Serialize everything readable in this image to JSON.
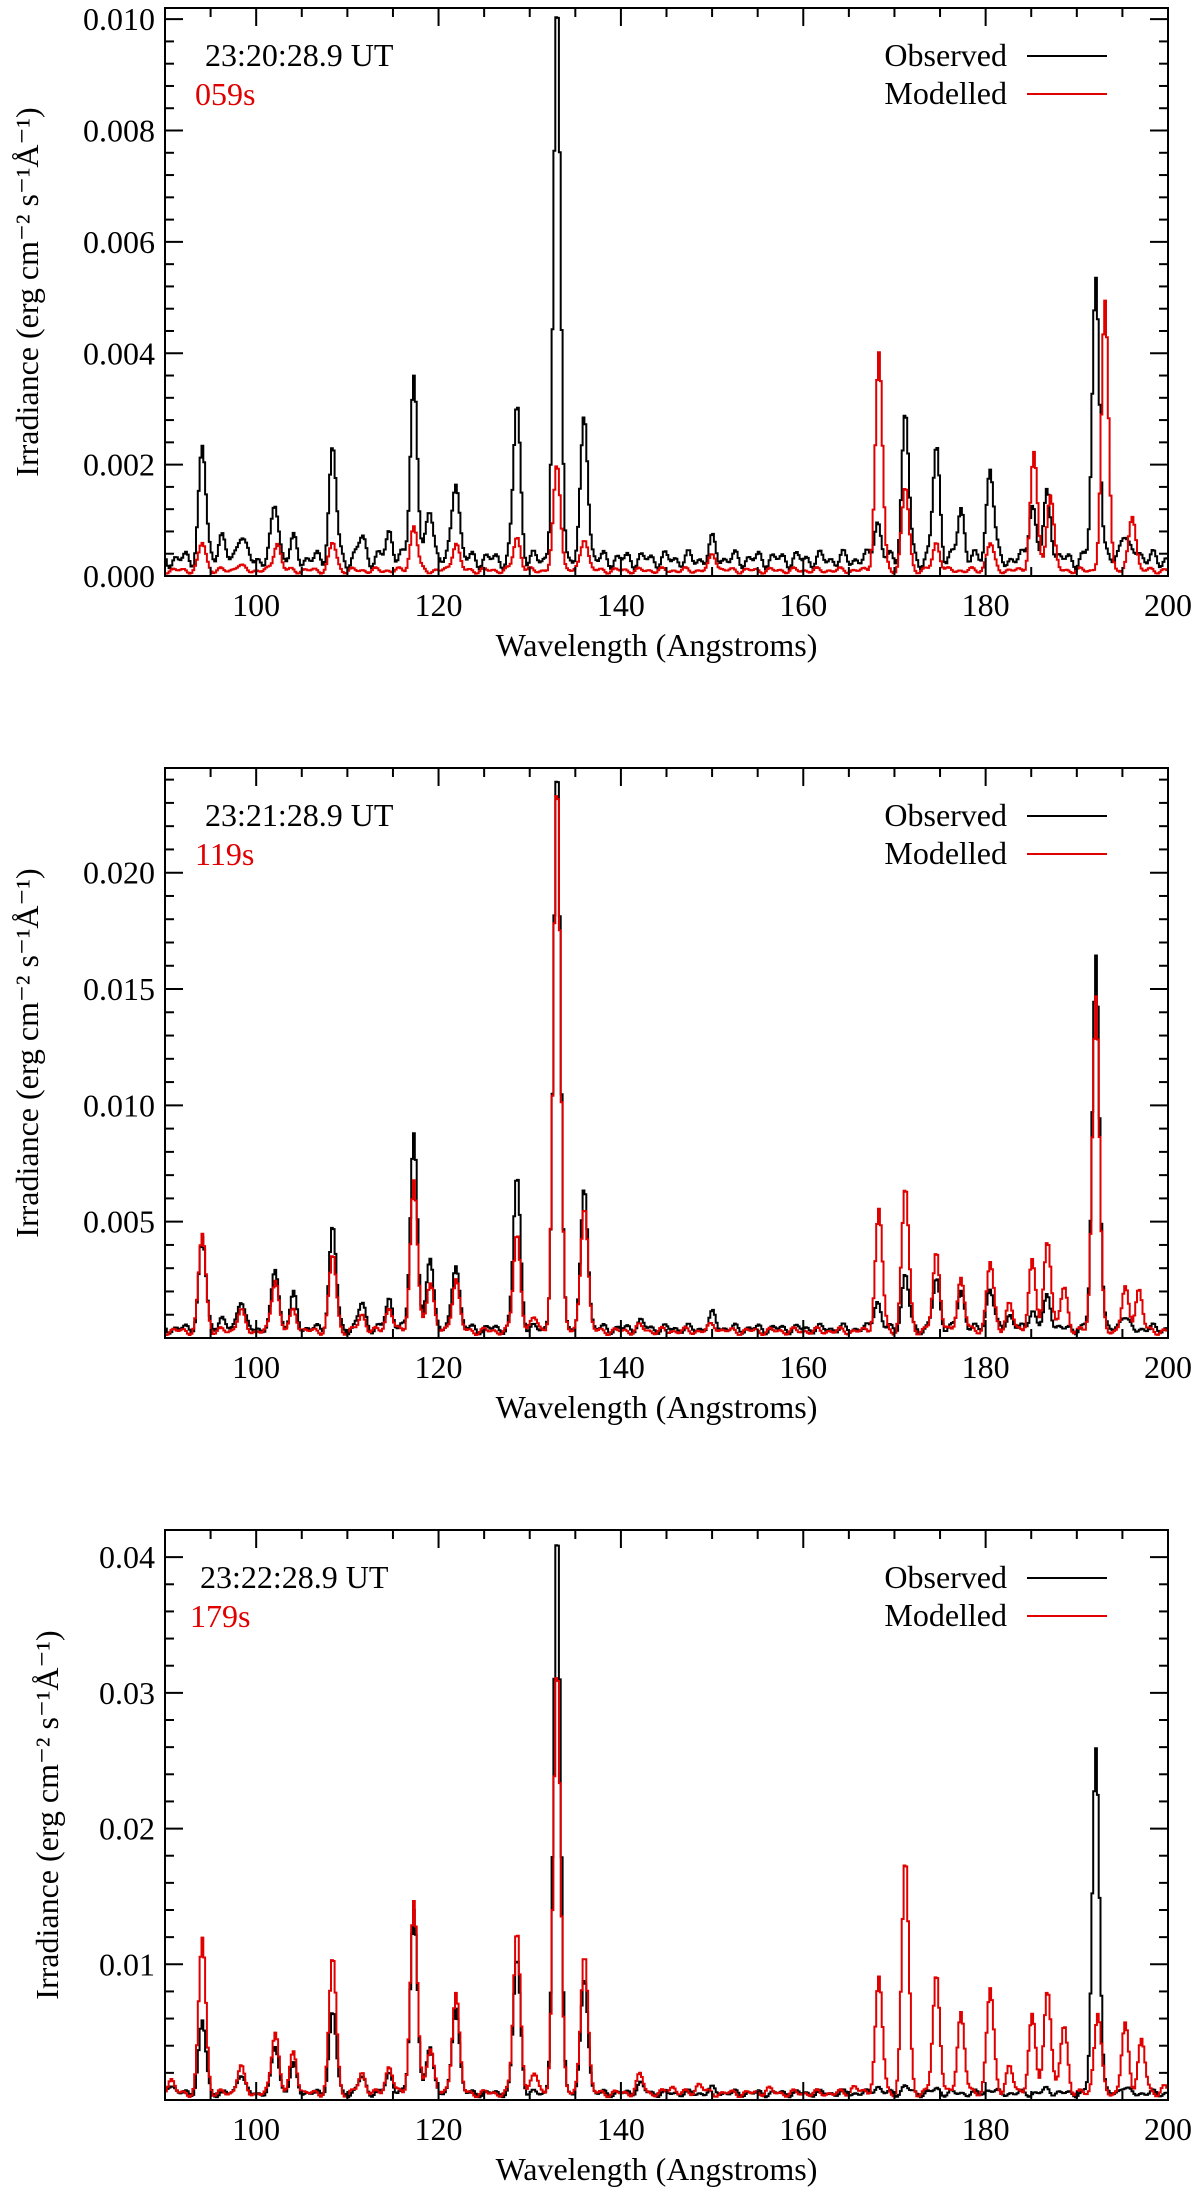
{
  "chart_data": [
    {
      "type": "line",
      "time_label": "23:20:28.9 UT",
      "elapsed_label": "059s",
      "xlabel": "Wavelength (Angstroms)",
      "ylabel": "Irradiance (erg cm⁻² s⁻¹Å⁻¹)",
      "xlim": [
        90,
        200
      ],
      "ylim": [
        0.0,
        0.0102
      ],
      "x_ticks": [
        "100",
        "120",
        "140",
        "160",
        "180",
        "200"
      ],
      "y_ticks": [
        "0.000",
        "0.002",
        "0.004",
        "0.006",
        "0.008",
        "0.010"
      ],
      "y_tick_values": [
        0.0,
        0.002,
        0.004,
        0.006,
        0.008,
        0.01
      ],
      "legend_position": "top-right",
      "series": [
        {
          "name": "Observed",
          "color": "#000000",
          "baseline": 0.0003,
          "peaks": [
            [
              94.0,
              0.0023
            ],
            [
              96.0,
              0.0007
            ],
            [
              98.2,
              0.0008
            ],
            [
              102.0,
              0.0013
            ],
            [
              104.0,
              0.0006
            ],
            [
              108.3,
              0.0023
            ],
            [
              111.5,
              0.0007
            ],
            [
              114.5,
              0.0008
            ],
            [
              117.2,
              0.0036
            ],
            [
              119.0,
              0.0012
            ],
            [
              121.8,
              0.0018
            ],
            [
              128.5,
              0.0031
            ],
            [
              132.9,
              0.0102
            ],
            [
              135.9,
              0.0029
            ],
            [
              142.0,
              0.0003
            ],
            [
              150.0,
              0.0006
            ],
            [
              168.0,
              0.001
            ],
            [
              171.1,
              0.0029
            ],
            [
              174.5,
              0.0023
            ],
            [
              177.2,
              0.0012
            ],
            [
              180.4,
              0.002
            ],
            [
              185.0,
              0.0013
            ],
            [
              186.7,
              0.0015
            ],
            [
              192.0,
              0.0054
            ],
            [
              195.0,
              0.0008
            ],
            [
              196.5,
              0.0005
            ]
          ]
        },
        {
          "name": "Modelled",
          "color": "#e00000",
          "baseline": 0.0001,
          "peaks": [
            [
              94.0,
              0.0006
            ],
            [
              98.0,
              0.0002
            ],
            [
              102.2,
              0.0006
            ],
            [
              108.3,
              0.0006
            ],
            [
              117.2,
              0.0009
            ],
            [
              121.8,
              0.0006
            ],
            [
              128.5,
              0.0007
            ],
            [
              132.9,
              0.002
            ],
            [
              135.9,
              0.0007
            ],
            [
              150.0,
              0.0004
            ],
            [
              168.2,
              0.004
            ],
            [
              171.1,
              0.0016
            ],
            [
              174.5,
              0.0006
            ],
            [
              180.4,
              0.0006
            ],
            [
              185.2,
              0.0022
            ],
            [
              187.0,
              0.0015
            ],
            [
              193.0,
              0.0049
            ],
            [
              196.0,
              0.0011
            ]
          ]
        }
      ]
    },
    {
      "type": "line",
      "time_label": "23:21:28.9 UT",
      "elapsed_label": "119s",
      "xlabel": "Wavelength (Angstroms)",
      "ylabel": "Irradiance (erg cm⁻² s⁻¹Å⁻¹)",
      "xlim": [
        90,
        200
      ],
      "ylim": [
        0.0,
        0.0245
      ],
      "x_ticks": [
        "100",
        "120",
        "140",
        "160",
        "180",
        "200"
      ],
      "y_ticks": [
        "0.005",
        "0.010",
        "0.015",
        "0.020"
      ],
      "y_tick_values": [
        0.005,
        0.01,
        0.015,
        0.02
      ],
      "legend_position": "top-right",
      "series": [
        {
          "name": "Observed",
          "color": "#000000",
          "baseline": 0.0004,
          "peaks": [
            [
              94.0,
              0.0043
            ],
            [
              96.0,
              0.0008
            ],
            [
              98.2,
              0.0017
            ],
            [
              102.0,
              0.003
            ],
            [
              104.0,
              0.0018
            ],
            [
              108.3,
              0.0048
            ],
            [
              111.5,
              0.0015
            ],
            [
              114.5,
              0.0017
            ],
            [
              117.2,
              0.0088
            ],
            [
              119.0,
              0.0035
            ],
            [
              121.8,
              0.0033
            ],
            [
              128.5,
              0.007
            ],
            [
              132.9,
              0.0245
            ],
            [
              135.9,
              0.0065
            ],
            [
              142.0,
              0.0007
            ],
            [
              150.0,
              0.001
            ],
            [
              168.0,
              0.0016
            ],
            [
              171.1,
              0.0027
            ],
            [
              174.5,
              0.0025
            ],
            [
              177.2,
              0.002
            ],
            [
              180.4,
              0.0022
            ],
            [
              182.5,
              0.001
            ],
            [
              185.0,
              0.0012
            ],
            [
              186.7,
              0.0018
            ],
            [
              192.0,
              0.0165
            ],
            [
              195.0,
              0.001
            ]
          ]
        },
        {
          "name": "Modelled",
          "color": "#e00000",
          "baseline": 0.0003,
          "peaks": [
            [
              94.0,
              0.0045
            ],
            [
              98.2,
              0.0012
            ],
            [
              102.0,
              0.0026
            ],
            [
              104.0,
              0.0012
            ],
            [
              108.3,
              0.0036
            ],
            [
              111.5,
              0.001
            ],
            [
              114.5,
              0.0013
            ],
            [
              117.2,
              0.0068
            ],
            [
              119.0,
              0.0025
            ],
            [
              121.8,
              0.0026
            ],
            [
              128.5,
              0.0045
            ],
            [
              130.5,
              0.0009
            ],
            [
              132.9,
              0.024
            ],
            [
              135.9,
              0.0058
            ],
            [
              142.0,
              0.0005
            ],
            [
              150.0,
              0.0006
            ],
            [
              168.2,
              0.0055
            ],
            [
              171.1,
              0.0065
            ],
            [
              174.5,
              0.0037
            ],
            [
              177.2,
              0.0026
            ],
            [
              180.4,
              0.0033
            ],
            [
              182.5,
              0.0015
            ],
            [
              185.0,
              0.0033
            ],
            [
              186.7,
              0.0043
            ],
            [
              188.5,
              0.0022
            ],
            [
              192.0,
              0.0148
            ],
            [
              195.2,
              0.0021
            ],
            [
              196.7,
              0.0021
            ]
          ]
        }
      ]
    },
    {
      "type": "line",
      "time_label": "23:22:28.9 UT",
      "elapsed_label": "179s",
      "xlabel": "Wavelength (Angstroms)",
      "ylabel": "Irradiance (erg cm⁻² s⁻¹Å⁻¹)",
      "xlim": [
        90,
        200
      ],
      "ylim": [
        0.0,
        0.042
      ],
      "x_ticks": [
        "100",
        "120",
        "140",
        "160",
        "180",
        "200"
      ],
      "y_ticks": [
        "0.01",
        "0.02",
        "0.03",
        "0.04"
      ],
      "y_tick_values": [
        0.01,
        0.02,
        0.03,
        0.04
      ],
      "legend_position": "top-right",
      "series": [
        {
          "name": "Observed",
          "color": "#000000",
          "baseline": 0.0005,
          "peaks": [
            [
              90.5,
              0.0012
            ],
            [
              94.0,
              0.0058
            ],
            [
              98.2,
              0.002
            ],
            [
              102.0,
              0.004
            ],
            [
              104.0,
              0.0025
            ],
            [
              108.3,
              0.0065
            ],
            [
              111.5,
              0.0017
            ],
            [
              114.5,
              0.002
            ],
            [
              117.2,
              0.014
            ],
            [
              119.0,
              0.004
            ],
            [
              121.8,
              0.007
            ],
            [
              128.5,
              0.0105
            ],
            [
              132.9,
              0.042
            ],
            [
              135.9,
              0.009
            ],
            [
              142.0,
              0.0012
            ],
            [
              150.0,
              0.0008
            ],
            [
              168.0,
              0.001
            ],
            [
              171.1,
              0.001
            ],
            [
              174.5,
              0.0008
            ],
            [
              180.4,
              0.0008
            ],
            [
              186.7,
              0.0008
            ],
            [
              192.0,
              0.026
            ],
            [
              195.0,
              0.001
            ]
          ]
        },
        {
          "name": "Modelled",
          "color": "#e00000",
          "baseline": 0.0005,
          "peaks": [
            [
              90.5,
              0.0015
            ],
            [
              94.0,
              0.012
            ],
            [
              98.2,
              0.0025
            ],
            [
              102.0,
              0.0052
            ],
            [
              104.0,
              0.0035
            ],
            [
              108.3,
              0.0106
            ],
            [
              111.5,
              0.002
            ],
            [
              114.5,
              0.0025
            ],
            [
              117.2,
              0.0147
            ],
            [
              119.0,
              0.004
            ],
            [
              121.8,
              0.008
            ],
            [
              128.5,
              0.0125
            ],
            [
              130.5,
              0.002
            ],
            [
              132.9,
              0.032
            ],
            [
              135.9,
              0.011
            ],
            [
              142.0,
              0.0018
            ],
            [
              145.5,
              0.001
            ],
            [
              148.5,
              0.0012
            ],
            [
              156.0,
              0.0008
            ],
            [
              160.0,
              0.0005
            ],
            [
              165.5,
              0.001
            ],
            [
              168.2,
              0.009
            ],
            [
              171.1,
              0.0178
            ],
            [
              174.5,
              0.0093
            ],
            [
              177.2,
              0.0065
            ],
            [
              180.4,
              0.0083
            ],
            [
              182.5,
              0.0025
            ],
            [
              185.0,
              0.0062
            ],
            [
              186.7,
              0.0083
            ],
            [
              188.5,
              0.0055
            ],
            [
              192.2,
              0.0065
            ],
            [
              195.2,
              0.0055
            ],
            [
              197.0,
              0.0045
            ],
            [
              199.5,
              0.001
            ]
          ]
        }
      ]
    }
  ]
}
